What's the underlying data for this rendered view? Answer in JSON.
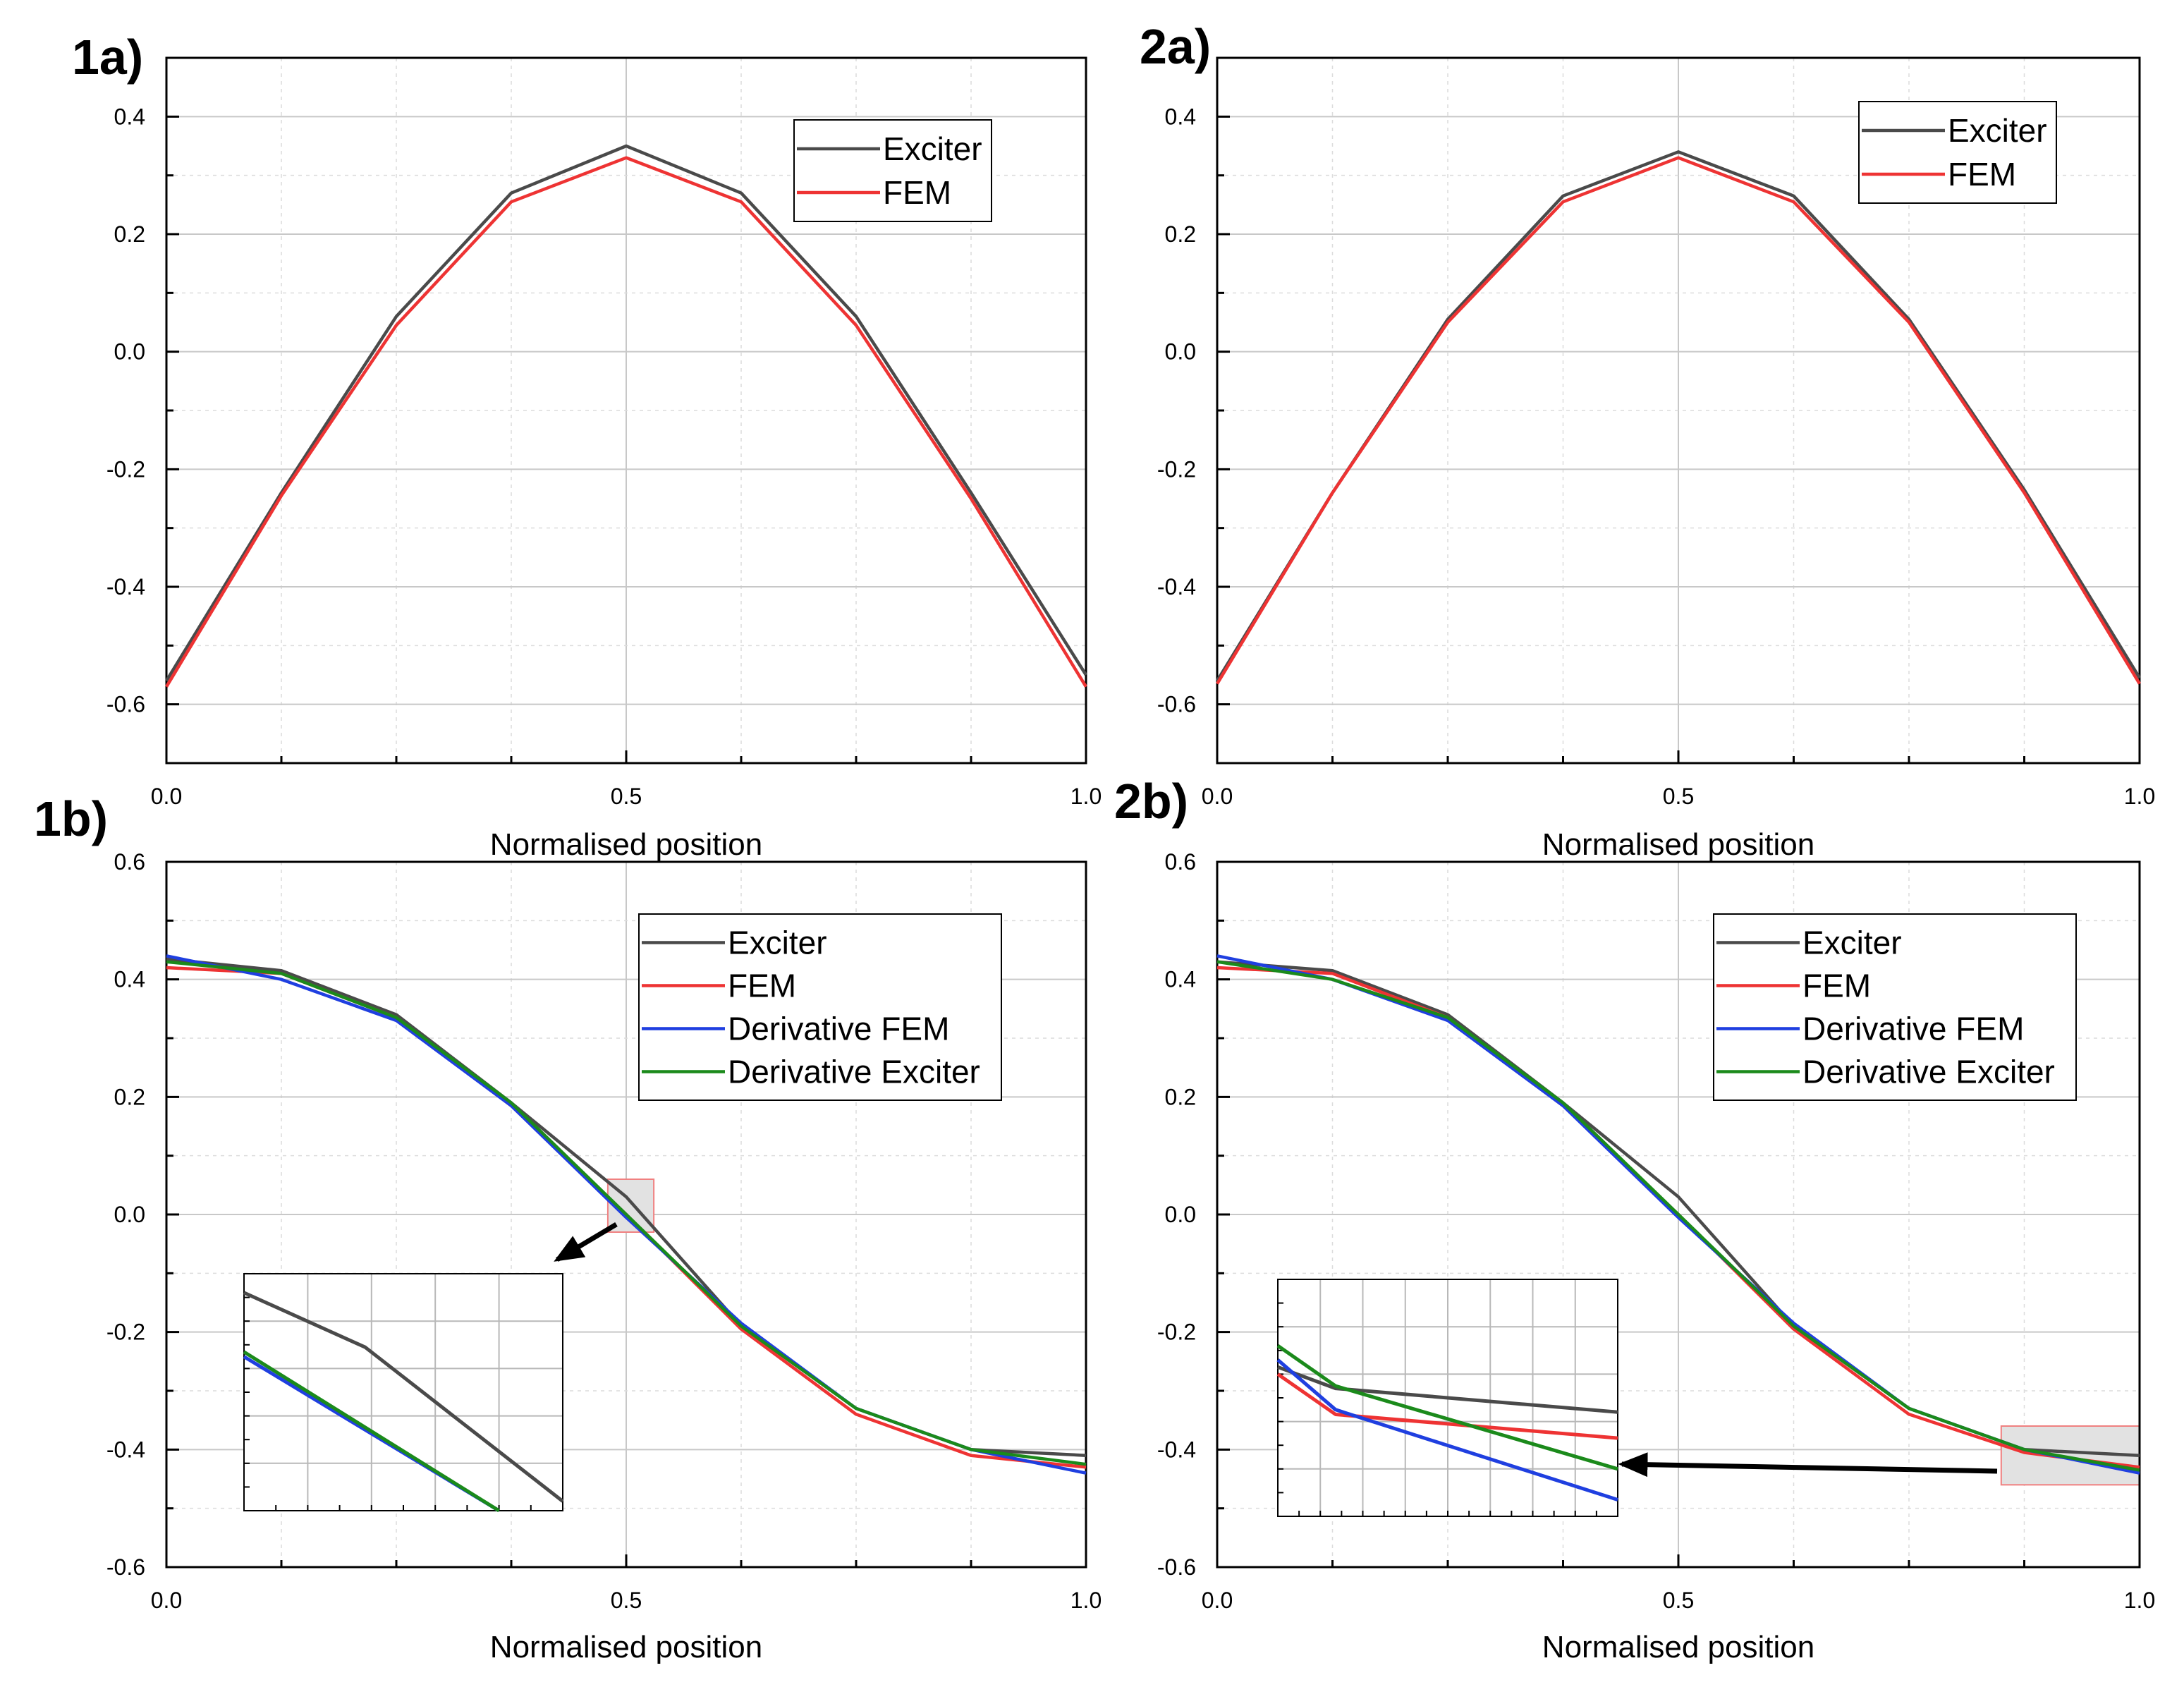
{
  "chart_data": [
    {
      "panel": "1a)",
      "type": "line",
      "xlabel": "Normalised position",
      "ylabel": "",
      "xlim": [
        0,
        1
      ],
      "ylim": [
        -0.7,
        0.5
      ],
      "xticks": [
        0.0,
        0.5,
        1.0
      ],
      "xtick_labels": [
        "0.0",
        "0.5",
        "1.0"
      ],
      "yticks": [
        -0.6,
        -0.4,
        -0.2,
        0.0,
        0.2,
        0.4
      ],
      "ytick_labels": [
        "-0.6",
        "-0.4",
        "-0.2",
        "0.0",
        "0.2",
        "0.4"
      ],
      "grid": true,
      "legend_position": "top-right",
      "series": [
        {
          "name": "Exciter",
          "color": "#4a4a4a",
          "x": [
            0,
            0.125,
            0.25,
            0.375,
            0.5,
            0.625,
            0.75,
            0.875,
            1.0
          ],
          "y": [
            -0.56,
            -0.24,
            0.06,
            0.27,
            0.35,
            0.27,
            0.06,
            -0.24,
            -0.55
          ]
        },
        {
          "name": "FEM",
          "color": "#ee3333",
          "x": [
            0,
            0.125,
            0.25,
            0.375,
            0.5,
            0.625,
            0.75,
            0.875,
            1.0
          ],
          "y": [
            -0.57,
            -0.245,
            0.045,
            0.255,
            0.33,
            0.255,
            0.045,
            -0.25,
            -0.57
          ]
        }
      ]
    },
    {
      "panel": "2a)",
      "type": "line",
      "xlabel": "Normalised position",
      "ylabel": "",
      "xlim": [
        0,
        1
      ],
      "ylim": [
        -0.7,
        0.5
      ],
      "xticks": [
        0.0,
        0.5,
        1.0
      ],
      "xtick_labels": [
        "0.0",
        "0.5",
        "1.0"
      ],
      "yticks": [
        -0.6,
        -0.4,
        -0.2,
        0.0,
        0.2,
        0.4
      ],
      "ytick_labels": [
        "-0.6",
        "-0.4",
        "-0.2",
        "0.0",
        "0.2",
        "0.4"
      ],
      "grid": true,
      "legend_position": "top-right",
      "series": [
        {
          "name": "Exciter",
          "color": "#4a4a4a",
          "x": [
            0,
            0.125,
            0.25,
            0.375,
            0.5,
            0.625,
            0.75,
            0.875,
            1.0
          ],
          "y": [
            -0.56,
            -0.24,
            0.055,
            0.265,
            0.34,
            0.265,
            0.055,
            -0.235,
            -0.555
          ]
        },
        {
          "name": "FEM",
          "color": "#ee3333",
          "x": [
            0,
            0.125,
            0.25,
            0.375,
            0.5,
            0.625,
            0.75,
            0.875,
            1.0
          ],
          "y": [
            -0.565,
            -0.24,
            0.05,
            0.255,
            0.33,
            0.255,
            0.05,
            -0.24,
            -0.565
          ]
        }
      ]
    },
    {
      "panel": "1b)",
      "type": "line",
      "xlabel": "Normalised position",
      "ylabel": "",
      "xlim": [
        0,
        1
      ],
      "ylim": [
        -0.6,
        0.6
      ],
      "xticks": [
        0.0,
        0.5,
        1.0
      ],
      "xtick_labels": [
        "0.0",
        "0.5",
        "1.0"
      ],
      "yticks": [
        -0.6,
        -0.4,
        -0.2,
        0.0,
        0.2,
        0.4,
        0.6
      ],
      "ytick_labels": [
        "-0.6",
        "-0.4",
        "-0.2",
        "0.0",
        "0.2",
        "0.4",
        "0.6"
      ],
      "grid": true,
      "legend_position": "top-right",
      "zoom_region": {
        "x": [
          0.48,
          0.53
        ],
        "y": [
          -0.03,
          0.06
        ]
      },
      "series": [
        {
          "name": "Exciter",
          "color": "#4a4a4a",
          "x": [
            0,
            0.125,
            0.25,
            0.375,
            0.5,
            0.625,
            0.75,
            0.875,
            1.0
          ],
          "y": [
            0.435,
            0.415,
            0.34,
            0.19,
            0.03,
            -0.19,
            -0.33,
            -0.4,
            -0.41
          ]
        },
        {
          "name": "FEM",
          "color": "#ee3333",
          "x": [
            0,
            0.125,
            0.25,
            0.375,
            0.5,
            0.625,
            0.75,
            0.875,
            1.0
          ],
          "y": [
            0.42,
            0.41,
            0.335,
            0.185,
            0.0,
            -0.195,
            -0.34,
            -0.41,
            -0.43
          ]
        },
        {
          "name": "Derivative FEM",
          "color": "#1f3fe0",
          "x": [
            0,
            0.125,
            0.25,
            0.375,
            0.5,
            0.625,
            0.75,
            0.875,
            1.0
          ],
          "y": [
            0.44,
            0.4,
            0.33,
            0.185,
            -0.005,
            -0.185,
            -0.33,
            -0.4,
            -0.44
          ]
        },
        {
          "name": "Derivative Exciter",
          "color": "#1b8a1b",
          "x": [
            0,
            0.125,
            0.25,
            0.375,
            0.5,
            0.625,
            0.75,
            0.875,
            1.0
          ],
          "y": [
            0.43,
            0.41,
            0.335,
            0.19,
            0.0,
            -0.19,
            -0.33,
            -0.4,
            -0.425
          ]
        }
      ],
      "inset": {
        "series": [
          {
            "name": "Exciter",
            "color": "#4a4a4a",
            "x": [
              0,
              0.38,
              1.0
            ],
            "y": [
              0.92,
              0.69,
              0.04
            ]
          },
          {
            "name": "Derivative FEM",
            "color": "#1f3fe0",
            "x": [
              0,
              0.8
            ],
            "y": [
              0.65,
              0.0
            ]
          },
          {
            "name": "Derivative Exciter",
            "color": "#1b8a1b",
            "x": [
              0,
              0.8
            ],
            "y": [
              0.67,
              0.0
            ]
          }
        ]
      }
    },
    {
      "panel": "2b)",
      "type": "line",
      "xlabel": "Normalised position",
      "ylabel": "",
      "xlim": [
        0,
        1
      ],
      "ylim": [
        -0.6,
        0.6
      ],
      "xticks": [
        0.0,
        0.5,
        1.0
      ],
      "xtick_labels": [
        "0.0",
        "0.5",
        "1.0"
      ],
      "yticks": [
        -0.6,
        -0.4,
        -0.2,
        0.0,
        0.2,
        0.4,
        0.6
      ],
      "ytick_labels": [
        "-0.6",
        "-0.4",
        "-0.2",
        "0.0",
        "0.2",
        "0.4",
        "0.6"
      ],
      "grid": true,
      "legend_position": "top-right",
      "zoom_region": {
        "x": [
          0.85,
          1.0
        ],
        "y": [
          -0.46,
          -0.36
        ]
      },
      "series": [
        {
          "name": "Exciter",
          "color": "#4a4a4a",
          "x": [
            0,
            0.125,
            0.25,
            0.375,
            0.5,
            0.625,
            0.75,
            0.875,
            1.0
          ],
          "y": [
            0.43,
            0.415,
            0.34,
            0.19,
            0.03,
            -0.19,
            -0.33,
            -0.4,
            -0.41
          ]
        },
        {
          "name": "FEM",
          "color": "#ee3333",
          "x": [
            0,
            0.125,
            0.25,
            0.375,
            0.5,
            0.625,
            0.75,
            0.875,
            1.0
          ],
          "y": [
            0.42,
            0.41,
            0.335,
            0.185,
            0.0,
            -0.195,
            -0.34,
            -0.405,
            -0.43
          ]
        },
        {
          "name": "Derivative FEM",
          "color": "#1f3fe0",
          "x": [
            0,
            0.125,
            0.25,
            0.375,
            0.5,
            0.625,
            0.75,
            0.875,
            1.0
          ],
          "y": [
            0.44,
            0.4,
            0.33,
            0.185,
            -0.005,
            -0.185,
            -0.33,
            -0.4,
            -0.44
          ]
        },
        {
          "name": "Derivative Exciter",
          "color": "#1b8a1b",
          "x": [
            0,
            0.125,
            0.25,
            0.375,
            0.5,
            0.625,
            0.75,
            0.875,
            1.0
          ],
          "y": [
            0.43,
            0.4,
            0.335,
            0.19,
            0.0,
            -0.19,
            -0.33,
            -0.4,
            -0.435
          ]
        }
      ],
      "inset": {
        "series": [
          {
            "name": "Exciter",
            "color": "#4a4a4a",
            "x": [
              0,
              0.17,
              1.0
            ],
            "y": [
              0.63,
              0.54,
              0.44
            ]
          },
          {
            "name": "FEM",
            "color": "#ee3333",
            "x": [
              0,
              0.17,
              1.0
            ],
            "y": [
              0.6,
              0.43,
              0.33
            ]
          },
          {
            "name": "Derivative FEM",
            "color": "#1f3fe0",
            "x": [
              0,
              0.17,
              1.0
            ],
            "y": [
              0.66,
              0.45,
              0.07
            ]
          },
          {
            "name": "Derivative Exciter",
            "color": "#1b8a1b",
            "x": [
              0,
              0.17,
              1.0
            ],
            "y": [
              0.72,
              0.55,
              0.2
            ]
          }
        ]
      }
    }
  ]
}
